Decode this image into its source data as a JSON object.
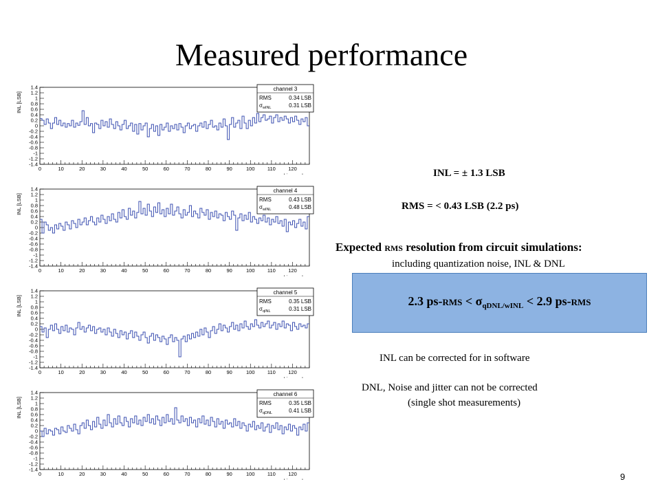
{
  "slide": {
    "title": "Measured performance",
    "page_number": "9"
  },
  "notes": {
    "inl": "INL = ± 1.3 LSB",
    "rms": "RMS = < 0.43 LSB (2.2 ps)",
    "expected_cap": "E",
    "expected_a": "xpected ",
    "expected_sc": "RMS",
    "expected_b": " resolution from circuit simulations:",
    "including": "including quantization noise, INL & DNL",
    "correctable": "INL can be corrected for in software",
    "not_correctable_1": "DNL, Noise and jitter can not be corrected",
    "not_correctable_2": "(single shot measurements)"
  },
  "result_box": {
    "left_value": "2.3 ps-",
    "left_unit": "RMS",
    "relation_1": " < σ",
    "subscript": "qDNL/wINL",
    "relation_2": " <  2.9 ps-",
    "right_unit": "RMS"
  },
  "chart_data": [
    {
      "type": "line",
      "step": true,
      "ylabel": "INL [LSB]",
      "xlabel": "bin number",
      "xlim": [
        0,
        128
      ],
      "ylim": [
        -1.4,
        1.4
      ],
      "xticks": [
        0,
        10,
        20,
        30,
        40,
        50,
        60,
        70,
        80,
        90,
        100,
        110,
        120
      ],
      "yticks": [
        -1.4,
        -1.2,
        -1,
        -0.8,
        -0.6,
        -0.4,
        -0.2,
        0,
        0.2,
        0.4,
        0.6,
        0.8,
        1,
        1.2,
        1.4
      ],
      "color": "#3b4fb0",
      "stats": {
        "title": "channel 3",
        "rows": [
          {
            "label": "RMS",
            "sym": "",
            "sub": "",
            "value": "0.34 LSB"
          },
          {
            "label": "",
            "sym": "σ",
            "sub": "wINL",
            "value": "0.31 LSB"
          }
        ]
      },
      "y": [
        0.26,
        0.2,
        0.05,
        0.25,
        0.1,
        -0.1,
        0.1,
        0.3,
        0.05,
        0.2,
        0.0,
        0.1,
        -0.05,
        0.08,
        0.0,
        0.2,
        -0.05,
        0.1,
        0.02,
        0.15,
        0.55,
        0.05,
        0.3,
        0.0,
        0.08,
        -0.25,
        0.1,
        0.05,
        -0.1,
        0.2,
        0.0,
        0.15,
        -0.05,
        0.25,
        0.05,
        -0.1,
        0.15,
        0.0,
        -0.15,
        0.05,
        0.2,
        -0.1,
        0.0,
        0.1,
        -0.2,
        0.05,
        -0.3,
        0.08,
        -0.15,
        0.0,
        0.1,
        -0.4,
        -0.1,
        0.05,
        -0.2,
        0.0,
        -0.35,
        0.05,
        -0.15,
        -0.05,
        0.1,
        -0.2,
        0.0,
        -0.1,
        0.05,
        -0.15,
        0.08,
        -0.05,
        -0.25,
        0.0,
        0.1,
        -0.1,
        0.0,
        0.05,
        -0.2,
        0.0,
        0.1,
        -0.05,
        0.15,
        -0.1,
        0.05,
        0.2,
        -0.05,
        0.0,
        -0.15,
        0.1,
        -0.05,
        0.25,
        0.0,
        -0.5,
        0.05,
        0.3,
        -0.05,
        0.1,
        0.2,
        -0.1,
        0.35,
        0.1,
        -0.1,
        0.2,
        0.0,
        0.3,
        0.1,
        0.45,
        0.15,
        0.3,
        0.4,
        0.2,
        0.25,
        0.35,
        0.1,
        0.3,
        0.4,
        0.15,
        0.3,
        0.2,
        0.35,
        0.25,
        0.1,
        0.3,
        0.15,
        0.35,
        0.2,
        0.05,
        0.25,
        0.15,
        0.3,
        0.0
      ]
    },
    {
      "type": "line",
      "step": true,
      "ylabel": "INL [LSB]",
      "xlabel": "bin number",
      "xlim": [
        0,
        128
      ],
      "ylim": [
        -1.4,
        1.4
      ],
      "xticks": [
        0,
        10,
        20,
        30,
        40,
        50,
        60,
        70,
        80,
        90,
        100,
        110,
        120
      ],
      "yticks": [
        -1.4,
        -1.2,
        -1,
        -0.8,
        -0.6,
        -0.4,
        -0.2,
        0,
        0.2,
        0.4,
        0.6,
        0.8,
        1,
        1.2,
        1.4
      ],
      "color": "#3b4fb0",
      "stats": {
        "title": "channel 4",
        "rows": [
          {
            "label": "RMS",
            "sym": "",
            "sub": "",
            "value": "0.43 LSB"
          },
          {
            "label": "",
            "sym": "σ",
            "sub": "wINL",
            "value": "0.48 LSB"
          }
        ]
      },
      "y": [
        0.3,
        -0.2,
        0.2,
        0.1,
        -0.1,
        0.0,
        -0.2,
        0.1,
        -0.05,
        0.15,
        0.05,
        -0.1,
        0.2,
        0.1,
        -0.05,
        0.25,
        0.15,
        0.0,
        0.3,
        0.1,
        0.2,
        0.35,
        0.1,
        0.25,
        0.4,
        0.2,
        0.1,
        0.35,
        0.2,
        0.45,
        0.3,
        0.15,
        0.4,
        0.25,
        0.5,
        0.3,
        0.2,
        0.55,
        0.35,
        0.65,
        0.4,
        0.3,
        0.7,
        0.45,
        0.6,
        0.35,
        0.55,
        0.95,
        0.5,
        0.7,
        0.45,
        0.85,
        0.6,
        0.4,
        0.75,
        0.55,
        0.9,
        0.5,
        0.65,
        0.4,
        0.7,
        0.5,
        0.85,
        0.45,
        0.6,
        0.75,
        0.5,
        0.35,
        0.65,
        0.45,
        0.55,
        0.8,
        0.4,
        0.6,
        0.5,
        0.35,
        0.7,
        0.55,
        0.45,
        0.65,
        0.3,
        0.55,
        0.4,
        0.6,
        0.35,
        0.5,
        0.45,
        0.25,
        0.55,
        0.4,
        0.3,
        0.6,
        0.45,
        -0.1,
        0.35,
        0.5,
        0.25,
        0.45,
        0.3,
        0.55,
        0.2,
        0.4,
        0.3,
        0.15,
        0.35,
        0.25,
        0.45,
        0.2,
        0.35,
        0.1,
        0.3,
        0.2,
        0.4,
        0.15,
        0.25,
        0.05,
        0.3,
        -0.15,
        0.2,
        0.1,
        0.25,
        0.0,
        0.15,
        0.3,
        0.05,
        0.2,
        -0.05,
        0.4
      ]
    },
    {
      "type": "line",
      "step": true,
      "ylabel": "INL [LSB]",
      "xlabel": "bin number",
      "xlim": [
        0,
        128
      ],
      "ylim": [
        -1.4,
        1.4
      ],
      "xticks": [
        0,
        10,
        20,
        30,
        40,
        50,
        60,
        70,
        80,
        90,
        100,
        110,
        120
      ],
      "yticks": [
        -1.4,
        -1.2,
        -1,
        -0.8,
        -0.6,
        -0.4,
        -0.2,
        0,
        0.2,
        0.4,
        0.6,
        0.8,
        1,
        1.2,
        1.4
      ],
      "color": "#3b4fb0",
      "stats": {
        "title": "channel 5",
        "rows": [
          {
            "label": "RMS",
            "sym": "",
            "sub": "",
            "value": "0.35 LSB"
          },
          {
            "label": "",
            "sym": "σ",
            "sub": "qINL",
            "value": "0.31 LSB"
          }
        ]
      },
      "y": [
        0.1,
        -0.1,
        0.05,
        -0.3,
        0.0,
        0.15,
        -0.05,
        0.2,
        0.0,
        -0.15,
        0.1,
        -0.05,
        0.15,
        -0.1,
        0.05,
        0.0,
        -0.2,
        0.05,
        0.25,
        0.0,
        0.1,
        -0.1,
        0.05,
        0.15,
        -0.05,
        0.1,
        -0.15,
        0.0,
        0.05,
        -0.1,
        0.0,
        -0.2,
        0.05,
        -0.1,
        -0.25,
        0.0,
        -0.15,
        -0.3,
        -0.05,
        -0.2,
        -0.1,
        -0.35,
        -0.15,
        -0.05,
        -0.3,
        -0.1,
        -0.25,
        -0.4,
        -0.2,
        -0.1,
        -0.3,
        -0.5,
        -0.25,
        -0.15,
        -0.4,
        -0.2,
        -0.3,
        -0.45,
        -0.25,
        -0.35,
        -0.55,
        -0.3,
        -0.2,
        -0.45,
        -0.3,
        -0.4,
        -1.0,
        -0.35,
        -0.25,
        -0.45,
        -0.2,
        -0.35,
        -0.15,
        -0.3,
        -0.1,
        -0.25,
        0.0,
        -0.2,
        0.05,
        -0.1,
        -0.3,
        -0.05,
        0.1,
        -0.15,
        0.0,
        0.2,
        -0.05,
        0.15,
        0.05,
        -0.1,
        0.1,
        0.25,
        0.0,
        0.15,
        -0.05,
        0.2,
        0.05,
        0.3,
        0.1,
        0.0,
        0.2,
        0.1,
        0.35,
        0.15,
        0.05,
        0.25,
        0.1,
        0.2,
        0.3,
        0.05,
        0.15,
        0.25,
        0.0,
        0.2,
        0.1,
        0.3,
        0.05,
        0.2,
        0.15,
        -0.05,
        0.25,
        0.1,
        0.0,
        0.2,
        0.1,
        0.15,
        0.05,
        0.2
      ]
    },
    {
      "type": "line",
      "step": true,
      "ylabel": "INL [LSB]",
      "xlabel": "bin number",
      "xlim": [
        0,
        128
      ],
      "ylim": [
        -1.4,
        1.4
      ],
      "xticks": [
        0,
        10,
        20,
        30,
        40,
        50,
        60,
        70,
        80,
        90,
        100,
        110,
        120
      ],
      "yticks": [
        -1.4,
        -1.2,
        -1,
        -0.8,
        -0.6,
        -0.4,
        -0.2,
        0,
        0.2,
        0.4,
        0.6,
        0.8,
        1,
        1.2,
        1.4
      ],
      "color": "#3b4fb0",
      "stats": {
        "title": "channel 6",
        "rows": [
          {
            "label": "RMS",
            "sym": "",
            "sub": "",
            "value": "0.35 LSB"
          },
          {
            "label": "",
            "sym": "σ",
            "sub": "qDNL",
            "value": "0.41 LSB"
          }
        ]
      },
      "y": [
        0.0,
        -0.2,
        0.1,
        -0.1,
        0.05,
        0.0,
        -0.15,
        0.1,
        0.05,
        -0.1,
        0.15,
        0.0,
        -0.05,
        0.2,
        0.1,
        0.0,
        0.25,
        0.05,
        -0.1,
        0.2,
        0.3,
        0.1,
        0.4,
        0.2,
        0.05,
        0.35,
        0.15,
        0.5,
        0.25,
        0.1,
        0.4,
        0.2,
        0.6,
        0.3,
        0.15,
        0.45,
        0.25,
        0.55,
        0.3,
        0.2,
        0.5,
        0.35,
        0.15,
        0.45,
        0.3,
        0.55,
        0.25,
        0.4,
        0.2,
        0.5,
        0.35,
        0.6,
        0.3,
        0.45,
        0.25,
        0.55,
        0.4,
        0.2,
        0.5,
        0.3,
        0.6,
        0.35,
        0.45,
        0.25,
        0.85,
        0.4,
        0.3,
        0.55,
        0.35,
        0.45,
        0.2,
        0.5,
        0.3,
        0.4,
        0.15,
        0.45,
        0.3,
        0.55,
        0.25,
        0.4,
        0.2,
        0.5,
        0.35,
        0.15,
        0.45,
        0.25,
        0.35,
        0.1,
        0.4,
        0.25,
        0.3,
        0.15,
        0.45,
        0.2,
        0.35,
        0.1,
        0.3,
        0.2,
        0.0,
        0.25,
        0.15,
        0.35,
        0.05,
        0.2,
        0.1,
        0.3,
        0.0,
        0.15,
        0.25,
        -0.05,
        0.2,
        0.1,
        0.3,
        0.05,
        0.2,
        -0.1,
        0.15,
        0.05,
        0.25,
        0.0,
        0.2,
        0.1,
        -0.15,
        0.15,
        0.05,
        0.25,
        0.0,
        0.3
      ]
    }
  ]
}
